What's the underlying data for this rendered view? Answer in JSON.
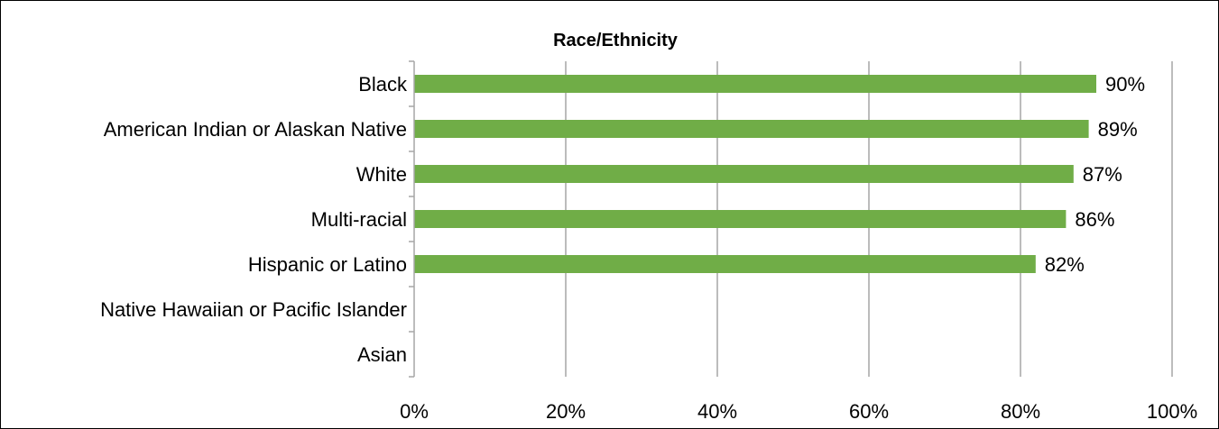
{
  "chart_data": {
    "type": "bar",
    "orientation": "horizontal",
    "title": "Race/Ethnicity",
    "categories": [
      "Black",
      "American Indian or Alaskan Native",
      "White",
      "Multi-racial",
      "Hispanic or Latino",
      "Native Hawaiian or Pacific Islander",
      "Asian"
    ],
    "values": [
      90,
      89,
      87,
      86,
      82,
      null,
      null
    ],
    "data_labels": [
      "90%",
      "89%",
      "87%",
      "86%",
      "82%",
      "",
      ""
    ],
    "xlim": [
      0,
      100
    ],
    "x_ticks": [
      0,
      20,
      40,
      60,
      80,
      100
    ],
    "x_tick_labels": [
      "0%",
      "20%",
      "40%",
      "60%",
      "80%",
      "100%"
    ],
    "grid": "vertical",
    "legend": "none",
    "bar_color": "#70AD47",
    "grid_color": "#A6A6A6"
  }
}
